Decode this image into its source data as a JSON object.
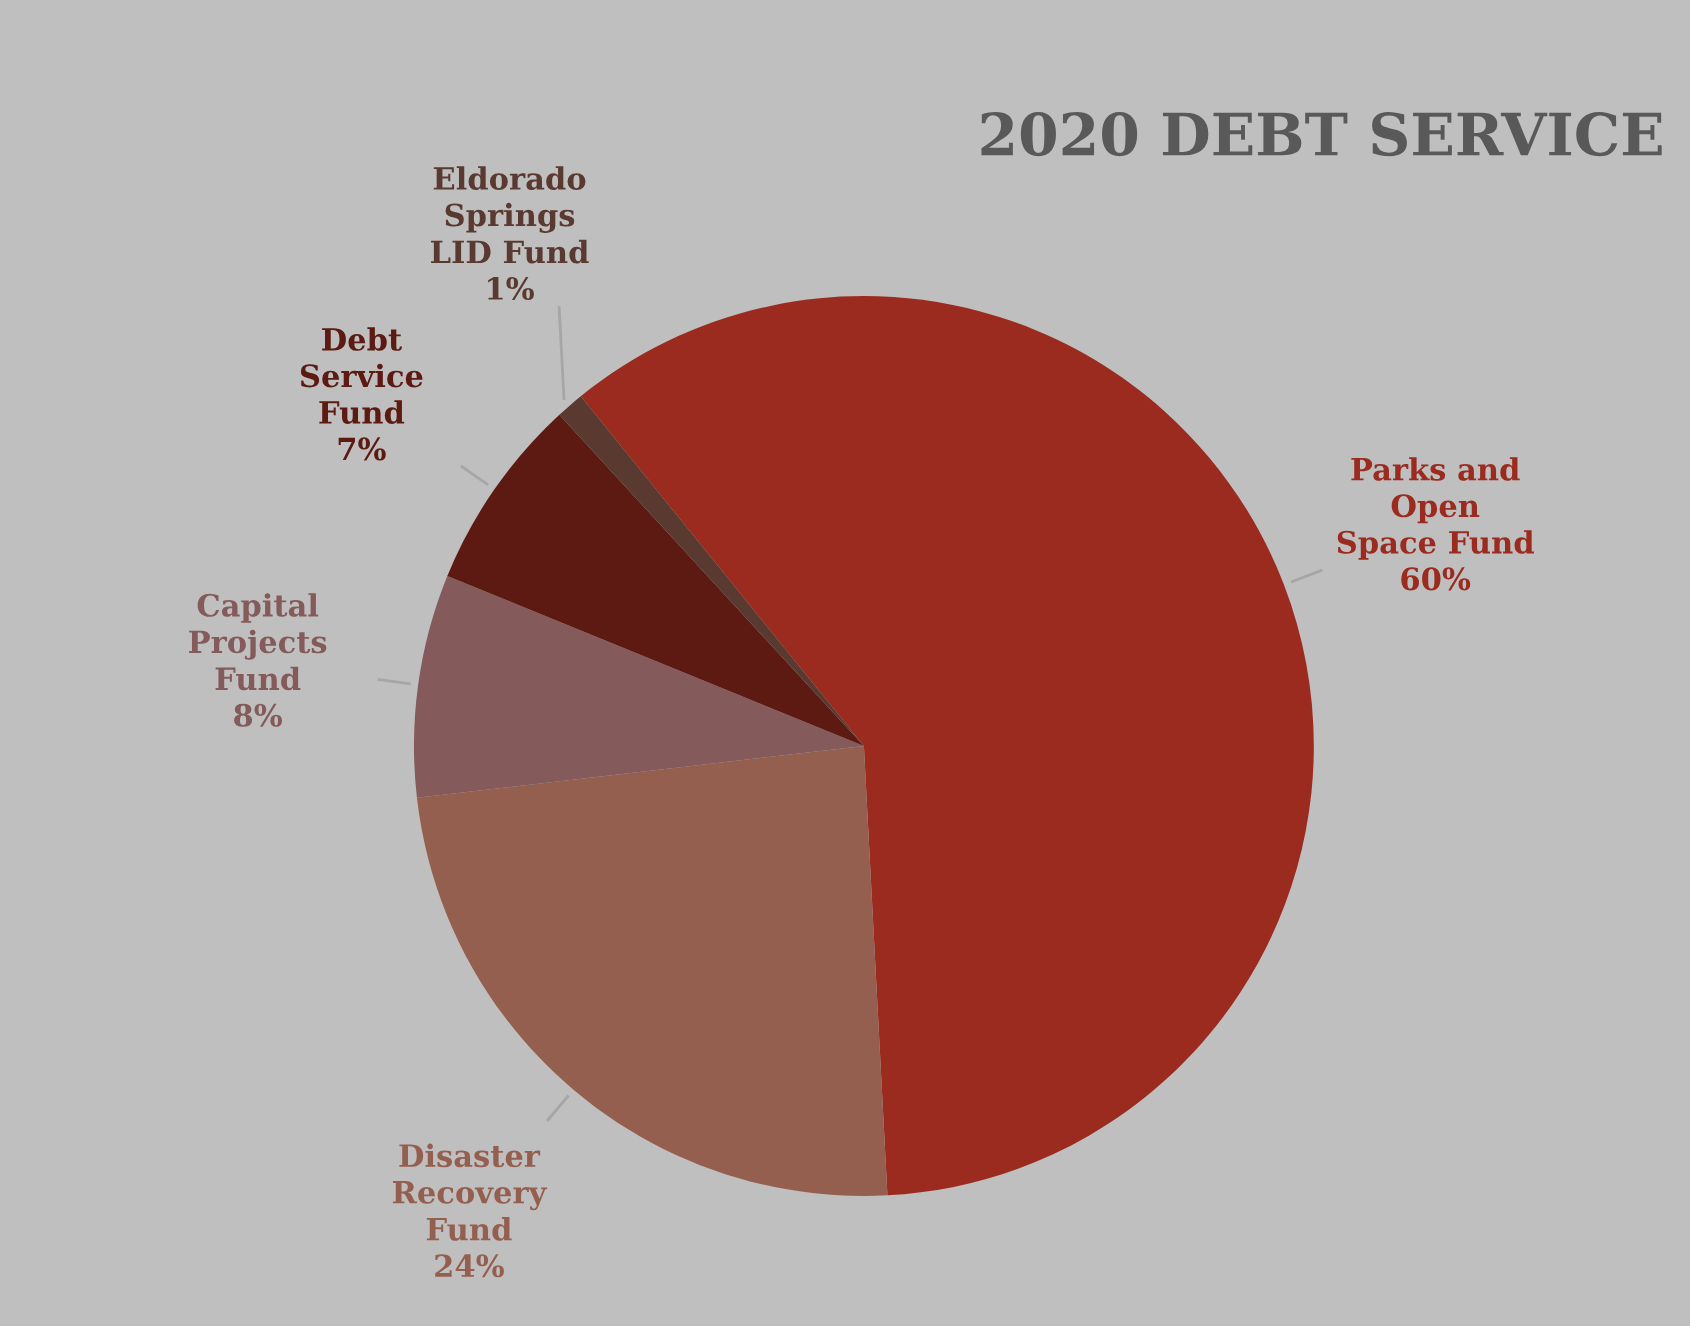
{
  "chart_data": {
    "type": "pie",
    "title": "2020 DEBT SERVICE",
    "categories": [
      "Parks and\nOpen\nSpace Fund",
      "Disaster\nRecovery\nFund",
      "Capital\nProjects\nFund",
      "Debt\nService\nFund",
      "Eldorado\nSprings\nLID Fund"
    ],
    "values": [
      60,
      24,
      8,
      7,
      1
    ],
    "colors": [
      "#9b2b1f",
      "#955f50",
      "#855a5a",
      "#5c1a12",
      "#5a3a30"
    ],
    "value_labels": [
      "60%",
      "24%",
      "8%",
      "7%",
      "1%"
    ],
    "legend": false
  }
}
